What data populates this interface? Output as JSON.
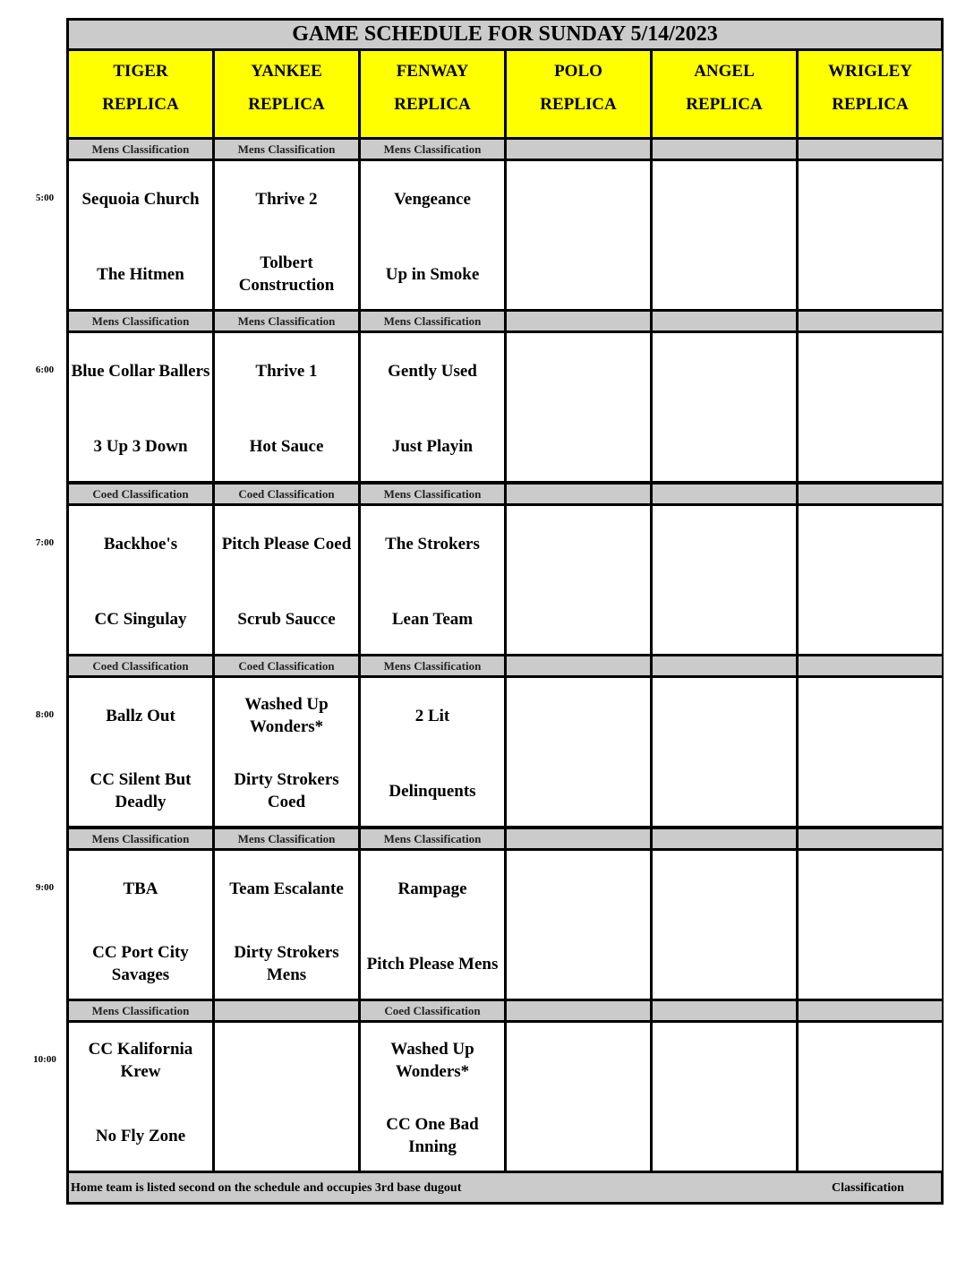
{
  "title": "GAME SCHEDULE FOR SUNDAY 5/14/2023",
  "fields": [
    {
      "name": "TIGER",
      "sub": "REPLICA"
    },
    {
      "name": "YANKEE",
      "sub": "REPLICA"
    },
    {
      "name": "FENWAY",
      "sub": "REPLICA"
    },
    {
      "name": "POLO",
      "sub": "REPLICA"
    },
    {
      "name": "ANGEL",
      "sub": "REPLICA"
    },
    {
      "name": "WRIGLEY",
      "sub": "REPLICA"
    }
  ],
  "slots": [
    {
      "time": "5:00",
      "classifications": [
        "Mens Classification",
        "Mens Classification",
        "Mens Classification",
        "",
        "",
        ""
      ],
      "games": [
        [
          "Sequoia Church",
          "The Hitmen"
        ],
        [
          "Thrive 2",
          "Tolbert Construction"
        ],
        [
          "Vengeance",
          "Up in Smoke"
        ],
        [
          "",
          ""
        ],
        [
          "",
          ""
        ],
        [
          "",
          ""
        ]
      ]
    },
    {
      "time": "6:00",
      "classifications": [
        "Mens Classification",
        "Mens Classification",
        "Mens Classification",
        "",
        "",
        ""
      ],
      "games": [
        [
          "Blue Collar Ballers",
          "3 Up 3 Down"
        ],
        [
          "Thrive 1",
          "Hot Sauce"
        ],
        [
          "Gently Used",
          "Just Playin"
        ],
        [
          "",
          ""
        ],
        [
          "",
          ""
        ],
        [
          "",
          ""
        ]
      ]
    },
    {
      "time": "7:00",
      "classifications": [
        "Coed Classification",
        "Coed Classification",
        "Mens Classification",
        "",
        "",
        ""
      ],
      "games": [
        [
          "Backhoe's",
          "CC Singulay"
        ],
        [
          "Pitch Please Coed",
          "Scrub Saucce"
        ],
        [
          "The Strokers",
          "Lean Team"
        ],
        [
          "",
          ""
        ],
        [
          "",
          ""
        ],
        [
          "",
          ""
        ]
      ]
    },
    {
      "time": "8:00",
      "classifications": [
        "Coed Classification",
        "Coed Classification",
        "Mens Classification",
        "",
        "",
        ""
      ],
      "games": [
        [
          "Ballz Out",
          "CC Silent But Deadly"
        ],
        [
          "Washed Up Wonders*",
          "Dirty Strokers Coed"
        ],
        [
          "2 Lit",
          "Delinquents"
        ],
        [
          "",
          ""
        ],
        [
          "",
          ""
        ],
        [
          "",
          ""
        ]
      ]
    },
    {
      "time": "9:00",
      "classifications": [
        "Mens Classification",
        "Mens Classification",
        "Mens Classification",
        "",
        "",
        ""
      ],
      "games": [
        [
          "TBA",
          "CC Port City Savages"
        ],
        [
          "Team Escalante",
          "Dirty Strokers Mens"
        ],
        [
          "Rampage",
          "Pitch Please Mens"
        ],
        [
          "",
          ""
        ],
        [
          "",
          ""
        ],
        [
          "",
          ""
        ]
      ]
    },
    {
      "time": "10:00",
      "classifications": [
        "Mens Classification",
        "",
        "Coed Classification",
        "",
        "",
        ""
      ],
      "games": [
        [
          "CC Kalifornia Krew",
          "No Fly Zone"
        ],
        [
          "",
          ""
        ],
        [
          "Washed Up Wonders*",
          "CC One Bad Inning"
        ],
        [
          "",
          ""
        ],
        [
          "",
          ""
        ],
        [
          "",
          ""
        ]
      ]
    }
  ],
  "footer": {
    "note": "Home team is listed second on the schedule and occupies 3rd base dugout",
    "right": "Classification"
  },
  "colors": {
    "header": "#ffff00",
    "band": "#cbcbcb",
    "grid": "#000000"
  }
}
